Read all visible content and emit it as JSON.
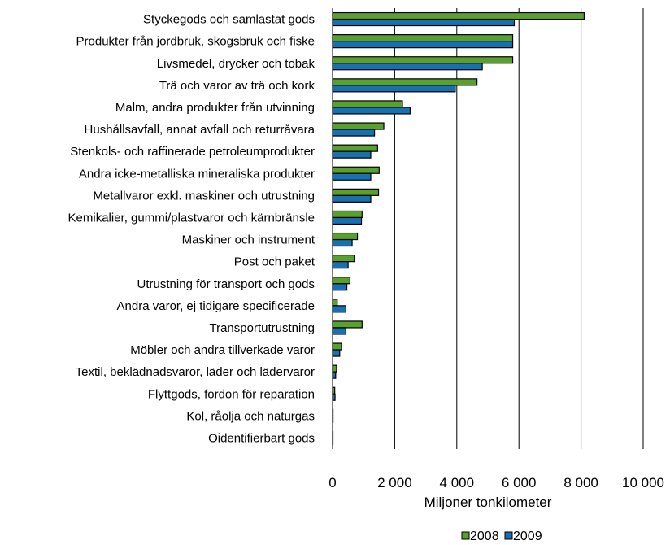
{
  "chart_data": {
    "type": "bar",
    "orientation": "horizontal",
    "title": "",
    "xlabel": "Miljoner tonkilometer",
    "ylabel": "",
    "xlim": [
      0,
      10000
    ],
    "x_ticks": [
      0,
      2000,
      4000,
      6000,
      8000,
      10000
    ],
    "x_tick_labels": [
      "0",
      "2 000",
      "4 000",
      "6 000",
      "8 000",
      "10 000"
    ],
    "grid": "vertical",
    "legend_position": "bottom-right",
    "categories": [
      "Styckegods och samlastat gods",
      "Produkter från jordbruk, skogsbruk och fiske",
      "Livsmedel, drycker och tobak",
      "Trä och varor av trä och kork",
      "Malm, andra produkter från utvinning",
      "Hushållsavfall, annat avfall och returråvara",
      "Stenkols- och raffinerade petroleumprodukter",
      "Andra icke-metalliska mineraliska produkter",
      "Metallvaror exkl. maskiner och utrustning",
      "Kemikalier, gummi/plastvaror och kärnbränsle",
      "Maskiner och instrument",
      "Post och paket",
      "Utrustning för transport och gods",
      "Andra varor, ej tidigare specificerade",
      "Transportutrustning",
      "Möbler och andra tillverkade varor",
      "Textil, beklädnadsvaror, läder och lädervaror",
      "Flyttgods, fordon för reparation",
      "Kol, råolja och naturgas",
      "Oidentifierbart gods"
    ],
    "series": [
      {
        "name": "2008",
        "color": "#5aa02c",
        "values": [
          8100,
          5800,
          5800,
          4650,
          2250,
          1650,
          1450,
          1500,
          1480,
          950,
          800,
          700,
          560,
          150,
          950,
          290,
          130,
          70,
          15,
          10
        ]
      },
      {
        "name": "2009",
        "color": "#1a6fb0",
        "values": [
          5850,
          5800,
          4820,
          3950,
          2500,
          1350,
          1230,
          1230,
          1230,
          930,
          630,
          500,
          460,
          430,
          430,
          230,
          100,
          80,
          15,
          10
        ]
      }
    ]
  }
}
